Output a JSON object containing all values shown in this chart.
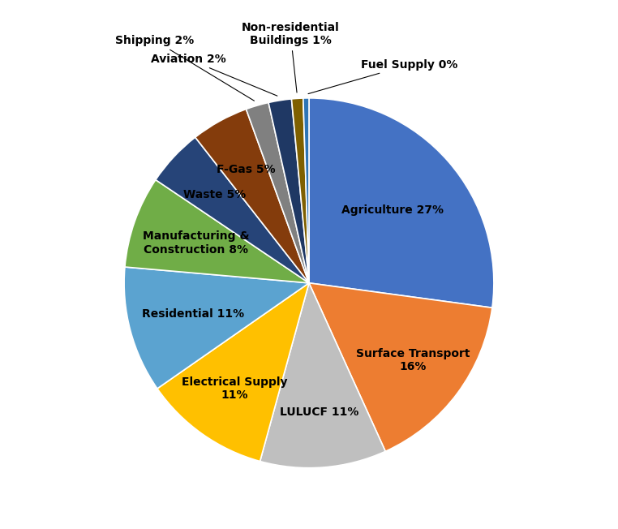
{
  "sectors": [
    "Agriculture 27%",
    "Surface Transport\n16%",
    "LULUCF 11%",
    "Electrical Supply\n11%",
    "Residential 11%",
    "Manufacturing &\nConstruction 8%",
    "Waste 5%",
    "F-Gas 5%",
    "Shipping 2%",
    "Aviation 2%",
    "Non-residential\nBuildings 1%",
    "Fuel Supply 0%"
  ],
  "values": [
    27,
    16,
    11,
    11,
    11,
    8,
    5,
    5,
    2,
    2,
    1,
    0.5
  ],
  "colors": [
    "#4472C4",
    "#ED7D31",
    "#BFBFBF",
    "#FFC000",
    "#5BA3D0",
    "#70AD47",
    "#264478",
    "#843C0C",
    "#808080",
    "#1F3864",
    "#7F6000",
    "#2E75B6"
  ],
  "startangle": 90,
  "background_color": "#FFFFFF"
}
